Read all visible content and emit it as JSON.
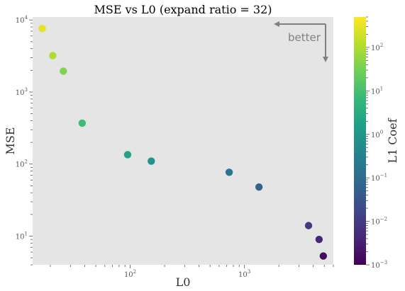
{
  "chart_data": {
    "type": "scatter",
    "title": "MSE vs L0 (expand ratio = 32)",
    "xlabel": "L0",
    "ylabel": "MSE",
    "xscale": "log",
    "yscale": "log",
    "xlim": [
      14,
      6000
    ],
    "ylim": [
      4,
      11000
    ],
    "grid": false,
    "x_tick_labels": [
      {
        "value": 100,
        "base": "10",
        "exp": "2"
      },
      {
        "value": 1000,
        "base": "10",
        "exp": "3"
      }
    ],
    "y_tick_labels": [
      {
        "value": 10,
        "base": "10",
        "exp": "1"
      },
      {
        "value": 100,
        "base": "10",
        "exp": "2"
      },
      {
        "value": 1000,
        "base": "10",
        "exp": "3"
      },
      {
        "value": 10000,
        "base": "10",
        "exp": "4"
      }
    ],
    "points": [
      {
        "x": 17,
        "y": 7600,
        "l1_coef": 300
      },
      {
        "x": 21,
        "y": 3200,
        "l1_coef": 100
      },
      {
        "x": 26,
        "y": 1950,
        "l1_coef": 40
      },
      {
        "x": 38,
        "y": 370,
        "l1_coef": 8
      },
      {
        "x": 95,
        "y": 135,
        "l1_coef": 2
      },
      {
        "x": 153,
        "y": 110,
        "l1_coef": 0.8
      },
      {
        "x": 735,
        "y": 77,
        "l1_coef": 0.15
      },
      {
        "x": 1340,
        "y": 48,
        "l1_coef": 0.06
      },
      {
        "x": 3640,
        "y": 14,
        "l1_coef": 0.01
      },
      {
        "x": 4500,
        "y": 9,
        "l1_coef": 0.004
      },
      {
        "x": 4900,
        "y": 5.3,
        "l1_coef": 0.0015
      }
    ],
    "colorbar": {
      "label": "L1 Coef",
      "scale": "log",
      "range": [
        0.001,
        500
      ],
      "colormap": "viridis",
      "tick_labels": [
        {
          "value": 0.001,
          "base": "10",
          "exp": "−3"
        },
        {
          "value": 0.01,
          "base": "10",
          "exp": "−2"
        },
        {
          "value": 0.1,
          "base": "10",
          "exp": "−1"
        },
        {
          "value": 1,
          "base": "10",
          "exp": "0"
        },
        {
          "value": 10,
          "base": "10",
          "exp": "1"
        },
        {
          "value": 100,
          "base": "10",
          "exp": "2"
        }
      ]
    },
    "annotation": {
      "text": "better"
    }
  },
  "colors": {
    "plot_background": "#e5e5e5",
    "annotation": "#808080",
    "viridis": [
      "#440154",
      "#482878",
      "#3e4989",
      "#31688e",
      "#26828e",
      "#1f9e89",
      "#35b779",
      "#6ece58",
      "#b5de2b",
      "#fde725"
    ]
  }
}
